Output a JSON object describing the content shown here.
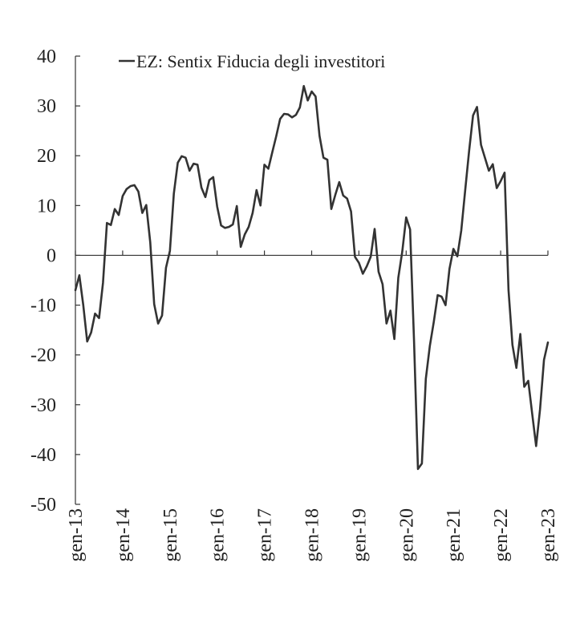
{
  "chart_data": {
    "type": "line",
    "title": "",
    "xlabel": "",
    "ylabel": "",
    "ylim": [
      -50,
      40
    ],
    "yticks": [
      40,
      30,
      20,
      10,
      0,
      -10,
      -20,
      -30,
      -40,
      -50
    ],
    "xticks": [
      "gen-13",
      "gen-14",
      "gen-15",
      "gen-16",
      "gen-17",
      "gen-18",
      "gen-19",
      "gen-20",
      "gen-21",
      "gen-22",
      "gen-23"
    ],
    "grid": false,
    "legend_position": "top-center",
    "series": [
      {
        "name": "EZ: Sentix Fiducia degli investitori",
        "color": "#333333",
        "x": [
          "2013-01",
          "2013-02",
          "2013-03",
          "2013-04",
          "2013-05",
          "2013-06",
          "2013-07",
          "2013-08",
          "2013-09",
          "2013-10",
          "2013-11",
          "2013-12",
          "2014-01",
          "2014-02",
          "2014-03",
          "2014-04",
          "2014-05",
          "2014-06",
          "2014-07",
          "2014-08",
          "2014-09",
          "2014-10",
          "2014-11",
          "2014-12",
          "2015-01",
          "2015-02",
          "2015-03",
          "2015-04",
          "2015-05",
          "2015-06",
          "2015-07",
          "2015-08",
          "2015-09",
          "2015-10",
          "2015-11",
          "2015-12",
          "2016-01",
          "2016-02",
          "2016-03",
          "2016-04",
          "2016-05",
          "2016-06",
          "2016-07",
          "2016-08",
          "2016-09",
          "2016-10",
          "2016-11",
          "2016-12",
          "2017-01",
          "2017-02",
          "2017-03",
          "2017-04",
          "2017-05",
          "2017-06",
          "2017-07",
          "2017-08",
          "2017-09",
          "2017-10",
          "2017-11",
          "2017-12",
          "2018-01",
          "2018-02",
          "2018-03",
          "2018-04",
          "2018-05",
          "2018-06",
          "2018-07",
          "2018-08",
          "2018-09",
          "2018-10",
          "2018-11",
          "2018-12",
          "2019-01",
          "2019-02",
          "2019-03",
          "2019-04",
          "2019-05",
          "2019-06",
          "2019-07",
          "2019-08",
          "2019-09",
          "2019-10",
          "2019-11",
          "2019-12",
          "2020-01",
          "2020-02",
          "2020-03",
          "2020-04",
          "2020-05",
          "2020-06",
          "2020-07",
          "2020-08",
          "2020-09",
          "2020-10",
          "2020-11",
          "2020-12",
          "2021-01",
          "2021-02",
          "2021-03",
          "2021-04",
          "2021-05",
          "2021-06",
          "2021-07",
          "2021-08",
          "2021-09",
          "2021-10",
          "2021-11",
          "2021-12",
          "2022-01",
          "2022-02",
          "2022-03",
          "2022-04",
          "2022-05",
          "2022-06",
          "2022-07",
          "2022-08",
          "2022-09",
          "2022-10",
          "2022-11",
          "2022-12",
          "2023-01"
        ],
        "values": [
          -7,
          -4,
          -10,
          -17.3,
          -15.5,
          -11.7,
          -12.6,
          -5.5,
          6.5,
          6.1,
          9.3,
          8.1,
          11.9,
          13.3,
          13.9,
          14.1,
          12.8,
          8.5,
          10.1,
          2.6,
          -9.8,
          -13.7,
          -12.1,
          -2.5,
          0.9,
          12.4,
          18.6,
          19.9,
          19.6,
          17.0,
          18.4,
          18.2,
          13.6,
          11.7,
          15.1,
          15.7,
          9.8,
          6.0,
          5.5,
          5.7,
          6.2,
          9.9,
          1.7,
          4.2,
          5.7,
          8.5,
          13.1,
          10.0,
          18.2,
          17.4,
          20.7,
          23.9,
          27.4,
          28.4,
          28.3,
          27.7,
          28.2,
          29.7,
          34.0,
          31.1,
          32.9,
          31.9,
          24.0,
          19.6,
          19.2,
          9.3,
          12.1,
          14.7,
          12.0,
          11.4,
          8.8,
          -0.3,
          -1.5,
          -3.7,
          -2.2,
          -0.3,
          5.3,
          -3.3,
          -5.8,
          -13.7,
          -11.1,
          -16.8,
          -4.5,
          0.7,
          7.6,
          5.2,
          -17.1,
          -42.9,
          -41.8,
          -24.8,
          -18.2,
          -13.4,
          -8.0,
          -8.3,
          -10.0,
          -2.7,
          1.3,
          -0.2,
          5.0,
          13.1,
          21.0,
          28.1,
          29.8,
          22.2,
          19.6,
          17.0,
          18.3,
          13.5,
          14.9,
          16.6,
          -7.0,
          -18.0,
          -22.6,
          -15.8,
          -26.4,
          -25.2,
          -31.8,
          -38.3,
          -30.9,
          -21.0,
          -17.5
        ]
      }
    ]
  }
}
